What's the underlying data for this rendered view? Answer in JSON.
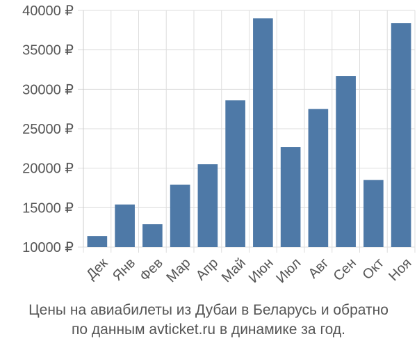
{
  "chart_data": {
    "type": "bar",
    "title": "",
    "xlabel": "",
    "ylabel": "",
    "currency": "₽",
    "categories": [
      "Дек",
      "Янв",
      "Фев",
      "Мар",
      "Апр",
      "Май",
      "Июн",
      "Июл",
      "Авг",
      "Сен",
      "Окт",
      "Ноя"
    ],
    "values": [
      11400,
      15400,
      12900,
      17900,
      20500,
      28600,
      39000,
      22700,
      27500,
      31700,
      18500,
      38400
    ],
    "ylim": [
      10000,
      40000
    ],
    "yticks": [
      10000,
      15000,
      20000,
      25000,
      30000,
      35000,
      40000
    ],
    "ytick_labels": [
      "10000 ₽",
      "15000 ₽",
      "20000 ₽",
      "25000 ₽",
      "30000 ₽",
      "35000 ₽",
      "40000 ₽"
    ],
    "grid": true,
    "bar_color": "#4e79a7",
    "grid_color": "#dddddd"
  },
  "caption": {
    "line1": "Цены на авиабилеты из Дубаи в Беларусь и обратно",
    "line2": "по данным avticket.ru в динамике за год."
  }
}
